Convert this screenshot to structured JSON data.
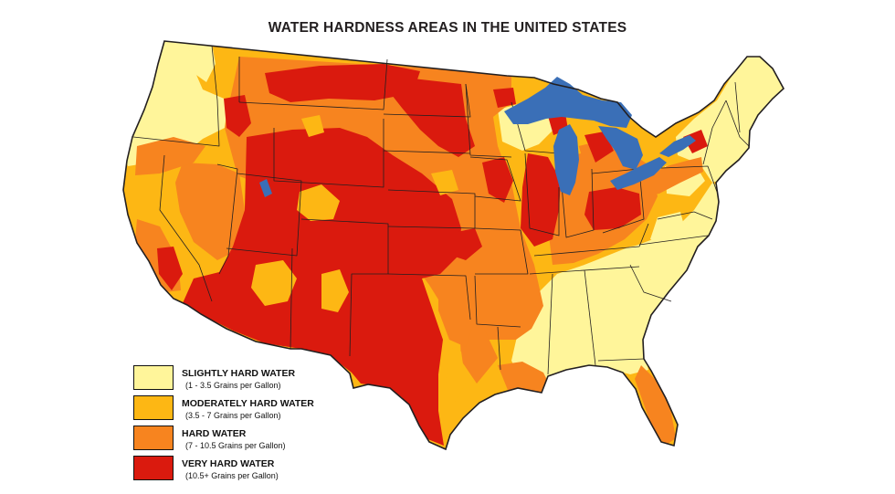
{
  "title": "WATER HARDNESS AREAS IN THE UNITED STATES",
  "colors": {
    "slightly_hard": "#fff59a",
    "moderately_hard": "#fdb714",
    "hard": "#f7841f",
    "very_hard": "#da1a0e",
    "water": "#3a6fb7",
    "border": "#231f20"
  },
  "legend": [
    {
      "label": "SLIGHTLY HARD WATER",
      "range": "(1 - 3.5 Grains per Gallon)",
      "color": "#fff59a"
    },
    {
      "label": "MODERATELY HARD WATER",
      "range": "(3.5 - 7 Grains per Gallon)",
      "color": "#fdb714"
    },
    {
      "label": "HARD WATER",
      "range": "(7 - 10.5 Grains per Gallon)",
      "color": "#f7841f"
    },
    {
      "label": "VERY HARD WATER",
      "range": "(10.5+ Grains per Gallon)",
      "color": "#da1a0e"
    }
  ]
}
